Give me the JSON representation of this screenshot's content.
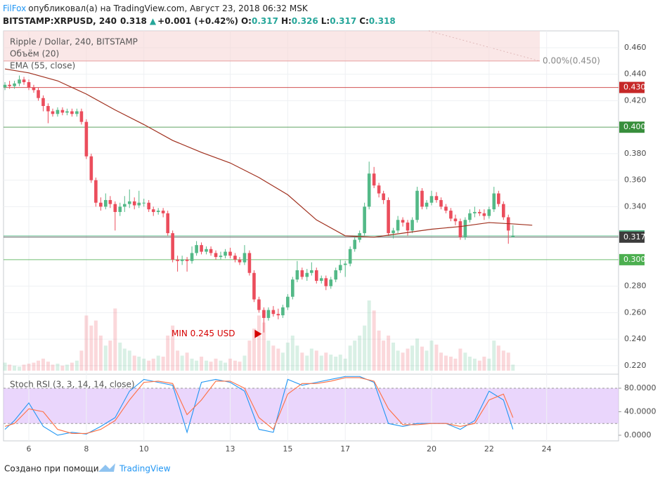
{
  "header": {
    "author": "FilFox",
    "published": "опубликовал(а) на TradingView.com, Август 23, 2018 06:32 MSK",
    "symbol": "BITSTAMP:XRPUSD, 240",
    "last": "0.318",
    "change_arrow": "▲",
    "change": "+0.001 (+0.42%)",
    "ohlc": [
      {
        "key": "O:",
        "value": "0.317"
      },
      {
        "key": "H:",
        "value": "0.326"
      },
      {
        "key": "L:",
        "value": "0.317"
      },
      {
        "key": "C:",
        "value": "0.318"
      }
    ]
  },
  "footer": {
    "text": "Создано при помощи",
    "brand": "TradingView"
  },
  "chart_data": [
    {
      "type": "candlestick",
      "title": "Ripple / Dollar, 240, BITSTAMP",
      "up_color": "#53b987",
      "down_color": "#eb4d5c",
      "x": [
        5.17,
        5.33,
        5.5,
        5.67,
        5.83,
        6,
        6.17,
        6.33,
        6.5,
        6.67,
        6.83,
        7,
        7.17,
        7.33,
        7.5,
        7.67,
        7.83,
        8,
        8.17,
        8.33,
        8.5,
        8.67,
        8.83,
        9,
        9.17,
        9.33,
        9.5,
        9.67,
        9.83,
        10,
        10.17,
        10.33,
        10.5,
        10.67,
        10.83,
        11,
        11.17,
        11.33,
        11.5,
        11.67,
        11.83,
        12,
        12.17,
        12.33,
        12.5,
        12.67,
        12.83,
        13,
        13.17,
        13.33,
        13.5,
        13.67,
        13.83,
        14,
        14.17,
        14.33,
        14.5,
        14.67,
        14.83,
        15,
        15.17,
        15.33,
        15.5,
        15.67,
        15.83,
        16,
        16.17,
        16.33,
        16.5,
        16.67,
        16.83,
        17,
        17.17,
        17.33,
        17.5,
        17.67,
        17.83,
        18,
        18.17,
        18.33,
        18.5,
        18.67,
        18.83,
        19,
        19.17,
        19.33,
        19.5,
        19.67,
        19.83,
        20,
        20.17,
        20.33,
        20.5,
        20.67,
        20.83,
        21,
        21.17,
        21.33,
        21.5,
        21.67,
        21.83,
        22,
        22.17,
        22.33,
        22.5,
        22.67,
        22.83
      ],
      "open": [
        0.43,
        0.432,
        0.431,
        0.433,
        0.436,
        0.434,
        0.43,
        0.428,
        0.422,
        0.416,
        0.412,
        0.41,
        0.413,
        0.411,
        0.412,
        0.41,
        0.412,
        0.404,
        0.378,
        0.36,
        0.343,
        0.34,
        0.345,
        0.342,
        0.336,
        0.34,
        0.342,
        0.344,
        0.341,
        0.343,
        0.343,
        0.338,
        0.336,
        0.337,
        0.335,
        0.32,
        0.3,
        0.299,
        0.3,
        0.299,
        0.305,
        0.311,
        0.306,
        0.308,
        0.305,
        0.302,
        0.303,
        0.306,
        0.303,
        0.3,
        0.298,
        0.305,
        0.29,
        0.27,
        0.262,
        0.256,
        0.262,
        0.259,
        0.258,
        0.264,
        0.272,
        0.285,
        0.292,
        0.287,
        0.29,
        0.292,
        0.284,
        0.286,
        0.28,
        0.285,
        0.292,
        0.296,
        0.297,
        0.308,
        0.315,
        0.32,
        0.34,
        0.365,
        0.356,
        0.35,
        0.345,
        0.32,
        0.322,
        0.33,
        0.328,
        0.322,
        0.33,
        0.352,
        0.34,
        0.343,
        0.348,
        0.345,
        0.34,
        0.337,
        0.331,
        0.329,
        0.317,
        0.33,
        0.335,
        0.336,
        0.335,
        0.333,
        0.338,
        0.35,
        0.342,
        0.332,
        0.317
      ],
      "high": [
        0.434,
        0.435,
        0.435,
        0.439,
        0.438,
        0.436,
        0.432,
        0.43,
        0.424,
        0.418,
        0.414,
        0.415,
        0.415,
        0.414,
        0.414,
        0.414,
        0.414,
        0.406,
        0.38,
        0.362,
        0.347,
        0.35,
        0.348,
        0.344,
        0.343,
        0.348,
        0.353,
        0.347,
        0.352,
        0.346,
        0.345,
        0.34,
        0.339,
        0.339,
        0.337,
        0.322,
        0.303,
        0.303,
        0.302,
        0.31,
        0.314,
        0.313,
        0.31,
        0.31,
        0.307,
        0.306,
        0.308,
        0.309,
        0.305,
        0.302,
        0.311,
        0.307,
        0.292,
        0.272,
        0.264,
        0.264,
        0.265,
        0.263,
        0.266,
        0.274,
        0.287,
        0.299,
        0.294,
        0.293,
        0.298,
        0.294,
        0.288,
        0.288,
        0.287,
        0.294,
        0.3,
        0.299,
        0.31,
        0.317,
        0.322,
        0.343,
        0.374,
        0.37,
        0.358,
        0.352,
        0.347,
        0.324,
        0.333,
        0.332,
        0.33,
        0.332,
        0.355,
        0.354,
        0.345,
        0.352,
        0.351,
        0.347,
        0.342,
        0.339,
        0.334,
        0.331,
        0.332,
        0.338,
        0.34,
        0.338,
        0.338,
        0.34,
        0.355,
        0.352,
        0.344,
        0.334,
        0.326
      ],
      "low": [
        0.428,
        0.429,
        0.429,
        0.431,
        0.432,
        0.428,
        0.426,
        0.42,
        0.412,
        0.403,
        0.408,
        0.408,
        0.409,
        0.409,
        0.408,
        0.408,
        0.402,
        0.376,
        0.358,
        0.34,
        0.337,
        0.338,
        0.339,
        0.322,
        0.333,
        0.336,
        0.339,
        0.338,
        0.339,
        0.34,
        0.336,
        0.333,
        0.334,
        0.332,
        0.318,
        0.298,
        0.291,
        0.296,
        0.291,
        0.297,
        0.303,
        0.304,
        0.304,
        0.303,
        0.3,
        0.3,
        0.301,
        0.301,
        0.298,
        0.296,
        0.296,
        0.288,
        0.268,
        0.26,
        0.245,
        0.254,
        0.257,
        0.255,
        0.256,
        0.262,
        0.27,
        0.283,
        0.285,
        0.284,
        0.288,
        0.282,
        0.282,
        0.277,
        0.278,
        0.283,
        0.29,
        0.287,
        0.295,
        0.306,
        0.313,
        0.318,
        0.338,
        0.354,
        0.347,
        0.342,
        0.318,
        0.316,
        0.32,
        0.325,
        0.318,
        0.32,
        0.328,
        0.338,
        0.338,
        0.341,
        0.343,
        0.338,
        0.335,
        0.329,
        0.326,
        0.315,
        0.315,
        0.328,
        0.332,
        0.333,
        0.33,
        0.331,
        0.336,
        0.34,
        0.33,
        0.312,
        0.317
      ],
      "close": [
        0.432,
        0.431,
        0.433,
        0.436,
        0.434,
        0.43,
        0.428,
        0.422,
        0.416,
        0.412,
        0.41,
        0.413,
        0.411,
        0.412,
        0.41,
        0.412,
        0.404,
        0.378,
        0.36,
        0.343,
        0.34,
        0.345,
        0.342,
        0.336,
        0.34,
        0.342,
        0.344,
        0.341,
        0.343,
        0.343,
        0.338,
        0.336,
        0.337,
        0.335,
        0.32,
        0.3,
        0.299,
        0.3,
        0.299,
        0.305,
        0.311,
        0.306,
        0.308,
        0.305,
        0.302,
        0.303,
        0.306,
        0.303,
        0.3,
        0.298,
        0.305,
        0.29,
        0.27,
        0.262,
        0.256,
        0.262,
        0.259,
        0.258,
        0.264,
        0.272,
        0.285,
        0.292,
        0.287,
        0.29,
        0.292,
        0.284,
        0.286,
        0.28,
        0.285,
        0.292,
        0.296,
        0.297,
        0.308,
        0.315,
        0.32,
        0.34,
        0.365,
        0.356,
        0.35,
        0.345,
        0.32,
        0.322,
        0.33,
        0.328,
        0.322,
        0.33,
        0.352,
        0.34,
        0.343,
        0.348,
        0.345,
        0.34,
        0.337,
        0.331,
        0.329,
        0.317,
        0.33,
        0.335,
        0.336,
        0.335,
        0.333,
        0.338,
        0.35,
        0.342,
        0.332,
        0.322,
        0.318
      ],
      "volume": {
        "name": "Объём (20)",
        "values": [
          8,
          6,
          5,
          4,
          6,
          7,
          8,
          10,
          12,
          9,
          6,
          7,
          5,
          6,
          8,
          10,
          20,
          55,
          45,
          50,
          35,
          25,
          30,
          62,
          28,
          22,
          20,
          15,
          14,
          12,
          10,
          12,
          15,
          14,
          35,
          45,
          20,
          15,
          18,
          12,
          10,
          14,
          10,
          9,
          12,
          10,
          8,
          12,
          10,
          9,
          15,
          30,
          42,
          55,
          48,
          30,
          25,
          22,
          18,
          28,
          35,
          25,
          18,
          15,
          22,
          20,
          15,
          18,
          16,
          14,
          16,
          12,
          25,
          30,
          35,
          45,
          70,
          60,
          40,
          30,
          35,
          28,
          20,
          18,
          22,
          25,
          32,
          24,
          20,
          30,
          26,
          18,
          15,
          14,
          12,
          22,
          18,
          14,
          12,
          10,
          14,
          12,
          30,
          25,
          20,
          18,
          6
        ]
      },
      "series": [
        {
          "name": "EMA (55, close)",
          "color": "#a0301e",
          "x": [
            5.17,
            6,
            7,
            8,
            9,
            10,
            11,
            12,
            13,
            14,
            15,
            16,
            17,
            18,
            19,
            20,
            21,
            22,
            22.83,
            23.5
          ],
          "values": [
            0.444,
            0.441,
            0.435,
            0.425,
            0.413,
            0.402,
            0.39,
            0.381,
            0.373,
            0.362,
            0.349,
            0.33,
            0.318,
            0.317,
            0.32,
            0.323,
            0.325,
            0.328,
            0.327,
            0.326
          ]
        }
      ],
      "levels": [
        {
          "value": 0.43,
          "label": "0.430",
          "color": "#c62828"
        },
        {
          "value": 0.4,
          "label": "0.400",
          "color": "#388e3c"
        },
        {
          "value": 0.318,
          "label": "0.318",
          "color": "#53b987"
        },
        {
          "value": 0.317,
          "label": "0.317",
          "color": "#3c3c3c"
        },
        {
          "value": 0.3,
          "label": "0.300",
          "color": "#4caf50"
        }
      ],
      "fib": {
        "value": 0.45,
        "label": "0.00%(0.450)"
      },
      "annotation": {
        "text": "MIN 0.245 USD",
        "value": 0.245,
        "color": "#d50000"
      },
      "xlim": [
        5.12,
        26.5
      ],
      "ylim": [
        0.2162,
        0.4727
      ],
      "yticks": [
        {
          "value": 0.46,
          "label": "0.460"
        },
        {
          "value": 0.44,
          "label": "0.440"
        },
        {
          "value": 0.42,
          "label": "0.420"
        },
        {
          "value": 0.38,
          "label": "0.380"
        },
        {
          "value": 0.36,
          "label": "0.360"
        },
        {
          "value": 0.34,
          "label": "0.340"
        },
        {
          "value": 0.28,
          "label": "0.280"
        },
        {
          "value": 0.26,
          "label": "0.260"
        },
        {
          "value": 0.24,
          "label": "0.240"
        },
        {
          "value": 0.22,
          "label": "0.220"
        }
      ]
    },
    {
      "type": "line",
      "title": "Stoch RSI (3, 3, 14, 14, close)",
      "band": [
        20,
        80
      ],
      "band_color": "#e1c4fb",
      "x": [
        5.17,
        5.5,
        6,
        6.5,
        7,
        7.5,
        8,
        8.5,
        9,
        9.5,
        10,
        10.5,
        11,
        11.5,
        12,
        12.5,
        13,
        13.5,
        14,
        14.5,
        15,
        15.5,
        16,
        16.5,
        17,
        17.5,
        18,
        18.5,
        19,
        19.5,
        20,
        20.5,
        21,
        21.5,
        22,
        22.5,
        22.83
      ],
      "series": [
        {
          "color": "#2196f3",
          "values": [
            10,
            25,
            55,
            15,
            0,
            5,
            2,
            15,
            30,
            75,
            95,
            90,
            85,
            5,
            90,
            95,
            90,
            75,
            10,
            5,
            95,
            85,
            90,
            95,
            100,
            100,
            90,
            20,
            15,
            20,
            20,
            20,
            10,
            25,
            75,
            60,
            10
          ]
        },
        {
          "color": "#ff7043",
          "values": [
            15,
            20,
            45,
            40,
            10,
            3,
            3,
            10,
            25,
            60,
            90,
            92,
            88,
            35,
            60,
            92,
            92,
            80,
            30,
            10,
            70,
            88,
            88,
            92,
            98,
            98,
            92,
            45,
            18,
            18,
            20,
            20,
            15,
            20,
            60,
            70,
            30
          ]
        }
      ],
      "xlim": [
        5.12,
        26.5
      ],
      "ylim": [
        -9.6,
        97.9
      ],
      "xticks": [
        6,
        8,
        10,
        13,
        15,
        17,
        20,
        22,
        24
      ],
      "yticks": [
        {
          "value": 80,
          "label": "80.0000"
        },
        {
          "value": 40,
          "label": "40.0000"
        },
        {
          "value": 0,
          "label": "0.0000"
        }
      ]
    }
  ]
}
